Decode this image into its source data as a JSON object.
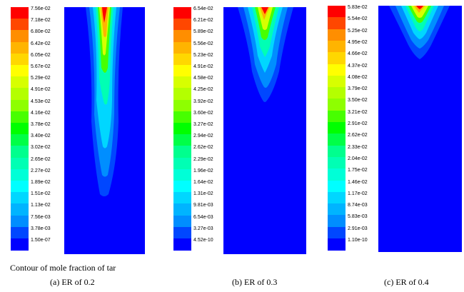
{
  "figure": {
    "main_caption": "Contour of mole fraction of tar",
    "panels": [
      {
        "caption": "(a)  ER of 0.2",
        "ticks": [
          "7.56e-02",
          "7.18e-02",
          "6.80e-02",
          "6.42e-02",
          "6.05e-02",
          "5.67e-02",
          "5.29e-02",
          "4.91e-02",
          "4.53e-02",
          "4.16e-02",
          "3.78e-02",
          "3.40e-02",
          "3.02e-02",
          "2.65e-02",
          "2.27e-02",
          "1.89e-02",
          "1.51e-02",
          "1.13e-02",
          "7.56e-03",
          "3.78e-03",
          "1.50e-07"
        ]
      },
      {
        "caption": "(b)  ER of 0.3",
        "ticks": [
          "6.54e-02",
          "6.21e-02",
          "5.89e-02",
          "5.56e-02",
          "5.23e-02",
          "4.91e-02",
          "4.58e-02",
          "4.25e-02",
          "3.92e-02",
          "3.60e-02",
          "3.27e-02",
          "2.94e-02",
          "2.62e-02",
          "2.29e-02",
          "1.96e-02",
          "1.64e-02",
          "1.31e-02",
          "9.81e-03",
          "6.54e-03",
          "3.27e-03",
          "4.52e-10"
        ]
      },
      {
        "caption": "(c)  ER of 0.4",
        "ticks": [
          "5.83e-02",
          "5.54e-02",
          "5.25e-02",
          "4.95e-02",
          "4.66e-02",
          "4.37e-02",
          "4.08e-02",
          "3.79e-02",
          "3.50e-02",
          "3.21e-02",
          "2.91e-02",
          "2.62e-02",
          "2.33e-02",
          "2.04e-02",
          "1.75e-02",
          "1.46e-02",
          "1.17e-02",
          "8.74e-03",
          "5.83e-03",
          "2.91e-03",
          "1.10e-10"
        ]
      }
    ],
    "colors": {
      "background_field": "#0000ff",
      "scale": [
        "#ff0000",
        "#ff4700",
        "#ff8e00",
        "#ffb400",
        "#ffd700",
        "#ffff00",
        "#d7ff00",
        "#b4ff00",
        "#8eff00",
        "#47ff00",
        "#00ff00",
        "#00ff47",
        "#00ff8e",
        "#00ffb4",
        "#00ffd7",
        "#00ffff",
        "#00d7ff",
        "#00b4ff",
        "#008eff",
        "#0047ff",
        "#0000ff"
      ]
    }
  }
}
